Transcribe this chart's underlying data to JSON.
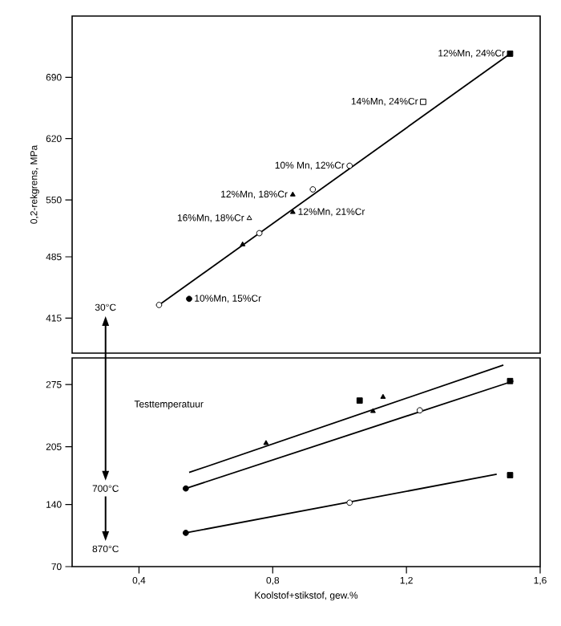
{
  "chart_data": [
    {
      "type": "scatter",
      "ylabel": "0,2-rekgrens, MPa",
      "xlim": [
        0.2,
        1.6
      ],
      "ylim": [
        375,
        760
      ],
      "yticks": [
        415,
        485,
        550,
        620,
        690
      ],
      "tick_labels": "y",
      "series": [
        {
          "type": "line",
          "x": [
            0.46,
            1.51
          ],
          "values": [
            430,
            717
          ],
          "color": "#000000",
          "marker": "none"
        },
        {
          "x": [
            0.46,
            0.76,
            0.92,
            1.03
          ],
          "values": [
            430,
            512,
            562,
            589
          ],
          "color": "#ffffff",
          "marker": "circle"
        },
        {
          "x": [
            0.55
          ],
          "values": [
            437
          ],
          "color": "#000000",
          "marker": "circle"
        },
        {
          "x": [
            0.71,
            0.86,
            0.86
          ],
          "values": [
            499,
            536,
            556
          ],
          "color": "#000000",
          "marker": "triangle"
        },
        {
          "x": [
            0.73
          ],
          "values": [
            529
          ],
          "color": "#ffffff",
          "marker": "triangle"
        },
        {
          "x": [
            1.25
          ],
          "values": [
            662
          ],
          "color": "#ffffff",
          "marker": "square"
        },
        {
          "x": [
            1.51
          ],
          "values": [
            717
          ],
          "color": "#000000",
          "marker": "square"
        }
      ],
      "annotations": [
        {
          "text": "12%Mn, 24%Cr",
          "x": 1.51,
          "y": 717
        },
        {
          "text": "14%Mn, 24%Cr",
          "x": 1.25,
          "y": 662
        },
        {
          "text": "10% Mn, 12%Cr",
          "x": 1.03,
          "y": 589
        },
        {
          "text": "12%Mn, 18%Cr",
          "x": 0.86,
          "y": 556
        },
        {
          "text": "12%Mn, 21%Cr",
          "x": 0.86,
          "y": 536
        },
        {
          "text": "16%Mn, 18%Cr",
          "x": 0.73,
          "y": 529
        },
        {
          "text": "10%Mn, 15%Cr",
          "x": 0.55,
          "y": 437
        }
      ]
    },
    {
      "type": "scatter",
      "xlabel": "Koolstof+stikstof, gew.%",
      "xlim": [
        0.2,
        1.6
      ],
      "ylim": [
        70,
        305
      ],
      "yticks": [
        70,
        140,
        205,
        275
      ],
      "xticks": [
        {
          "value": 0.4,
          "label": "0,4"
        },
        {
          "value": 0.8,
          "label": "0,8"
        },
        {
          "value": 1.2,
          "label": "1,2"
        },
        {
          "value": 1.6,
          "label": "1,6"
        }
      ],
      "series": [
        {
          "type": "line",
          "x": [
            0.55,
            1.49
          ],
          "values": [
            176,
            297
          ],
          "color": "#000000",
          "marker": "none"
        },
        {
          "type": "line",
          "x": [
            0.54,
            1.52
          ],
          "values": [
            158,
            279
          ],
          "color": "#000000",
          "marker": "none"
        },
        {
          "type": "line",
          "x": [
            0.54,
            1.47
          ],
          "values": [
            108,
            174
          ],
          "color": "#000000",
          "marker": "none"
        },
        {
          "x": [
            0.54,
            0.54
          ],
          "values": [
            158,
            108
          ],
          "color": "#000000",
          "marker": "circle"
        },
        {
          "x": [
            1.24,
            1.03
          ],
          "values": [
            246,
            142
          ],
          "color": "#ffffff",
          "marker": "circle"
        },
        {
          "x": [
            1.06,
            1.51,
            1.51
          ],
          "values": [
            257,
            279,
            173
          ],
          "color": "#000000",
          "marker": "square"
        },
        {
          "x": [
            1.13,
            1.1,
            0.78
          ],
          "values": [
            261,
            245,
            209
          ],
          "color": "#000000",
          "marker": "triangle"
        }
      ],
      "annotations": [
        "30°C",
        "Testtemperatuur",
        "700°C",
        "870°C"
      ]
    }
  ]
}
